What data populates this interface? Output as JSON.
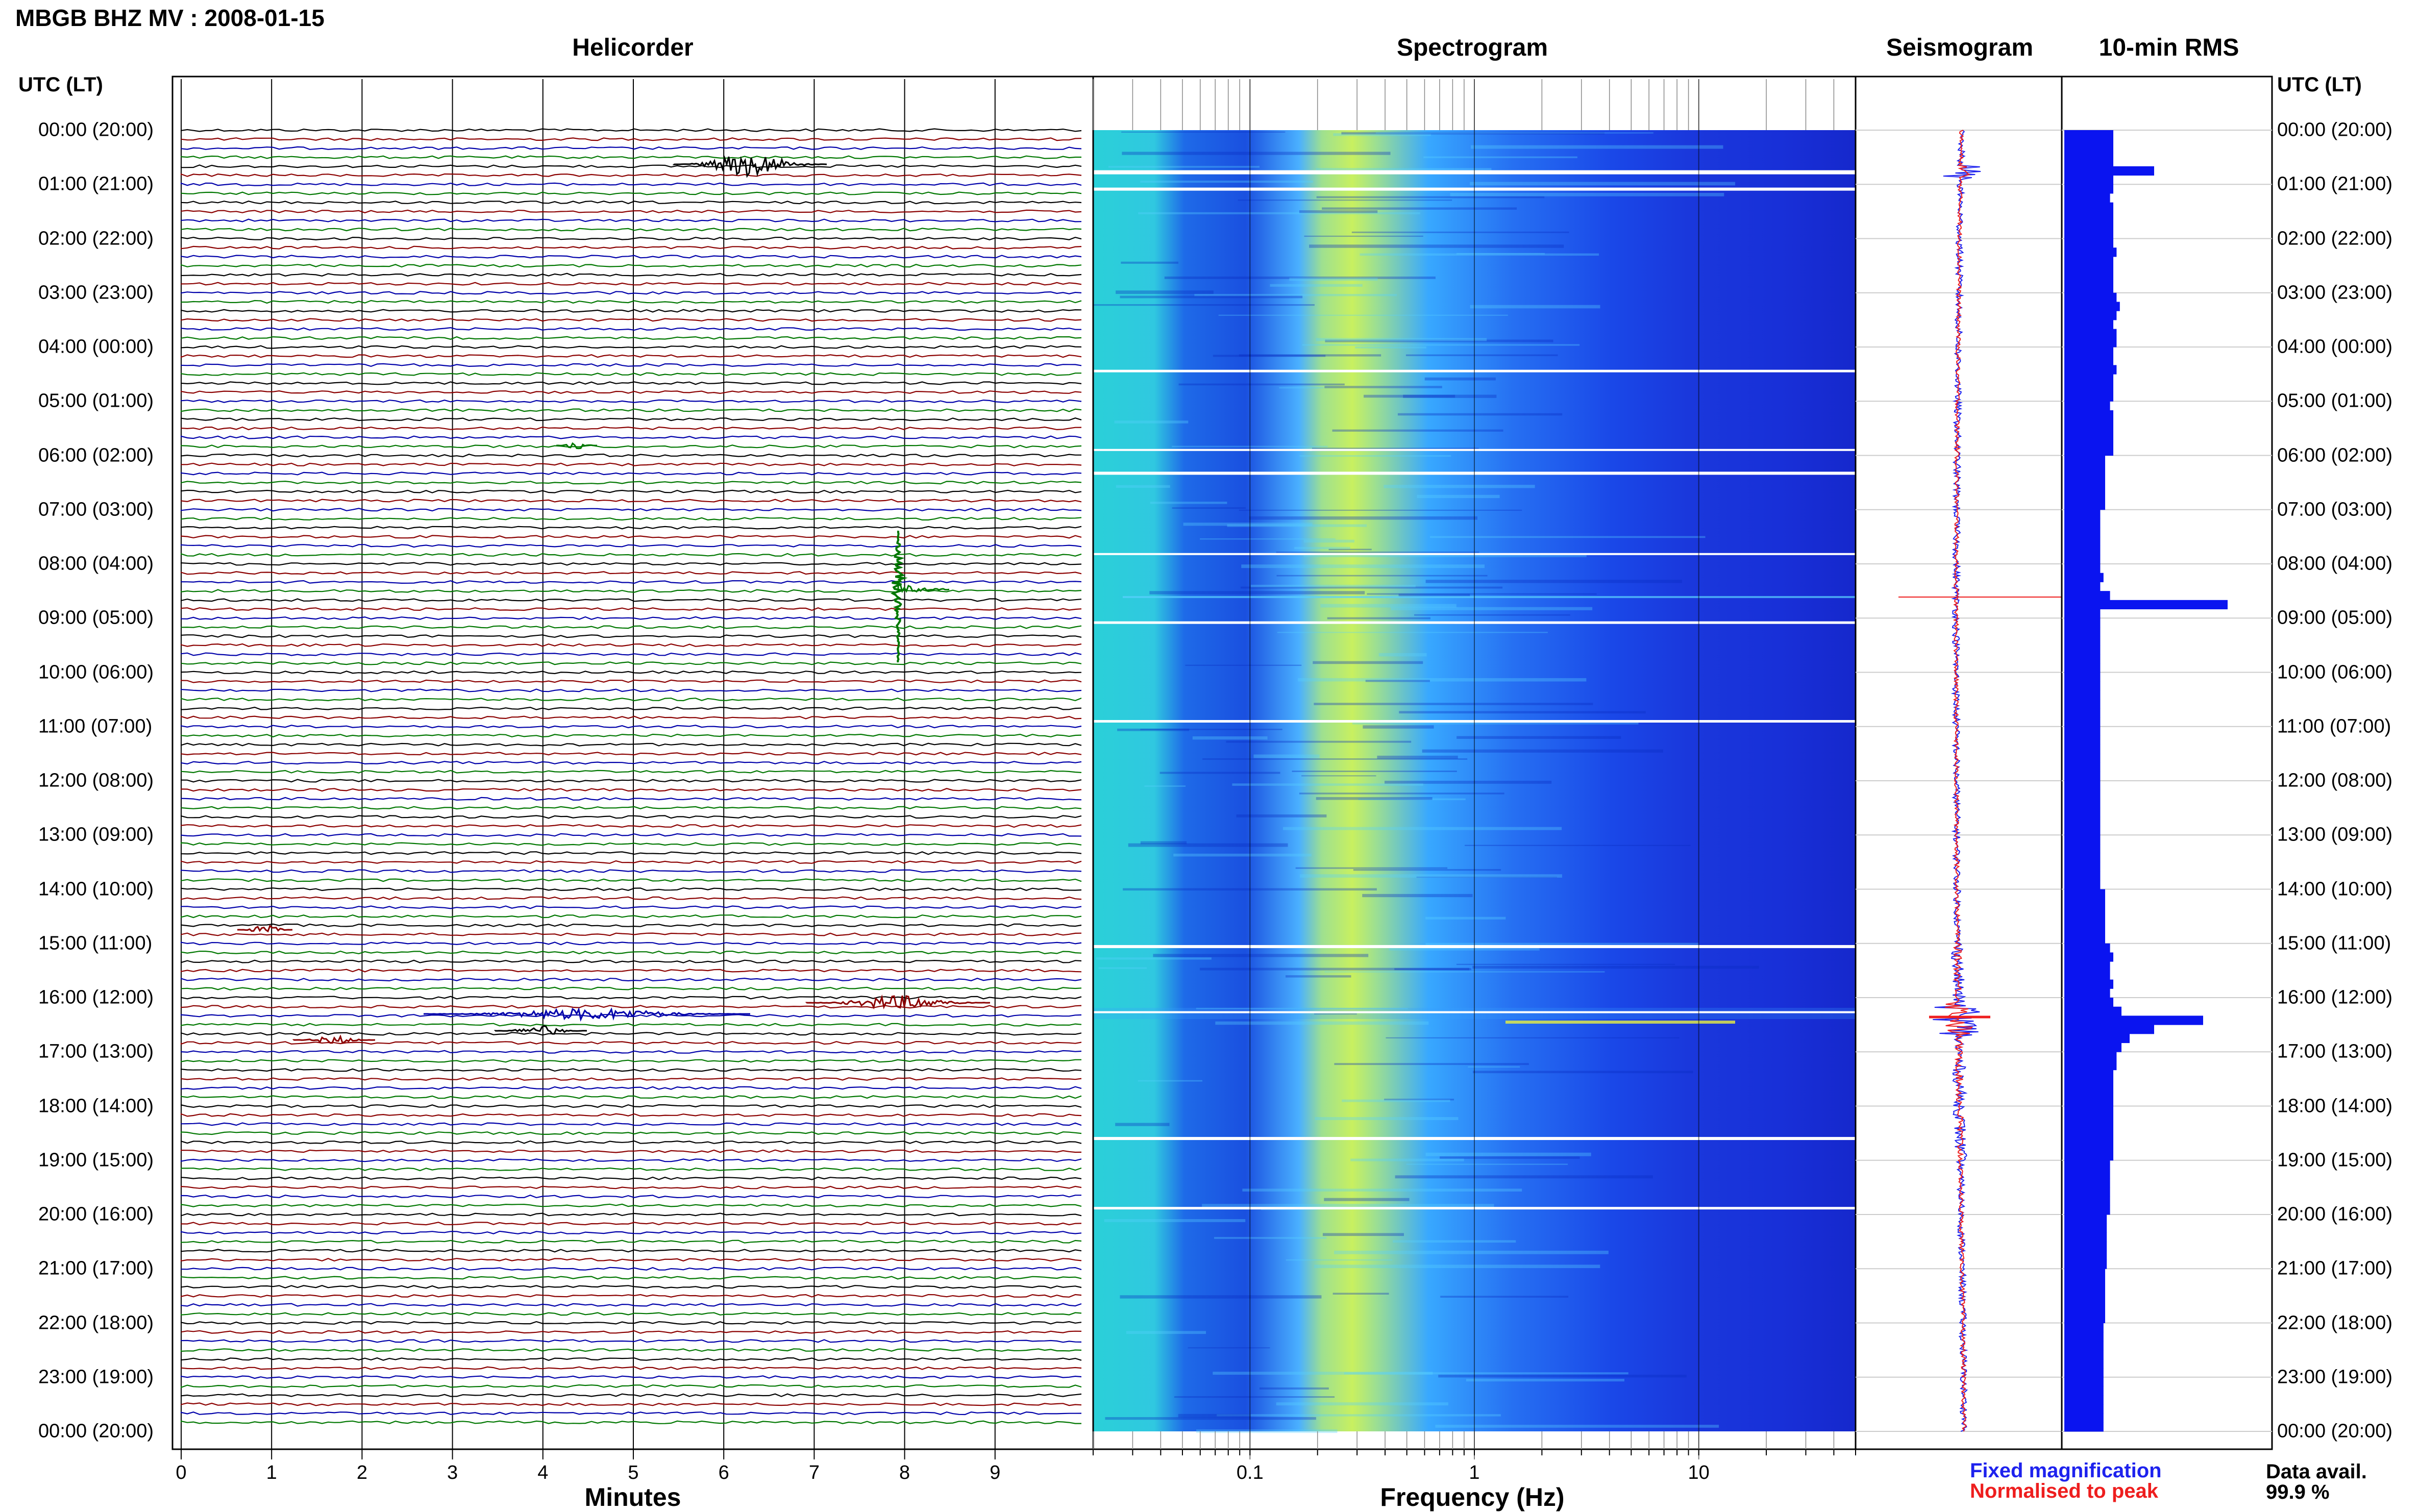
{
  "title": "MBGB BHZ MV : 2008-01-15",
  "panels": {
    "helicorder": "Helicorder",
    "spectrogram": "Spectrogram",
    "seismogram": "Seismogram",
    "rms": "10-min RMS"
  },
  "time_axis_label": "UTC (LT)",
  "time_labels": [
    "00:00 (20:00)",
    "01:00 (21:00)",
    "02:00 (22:00)",
    "03:00 (23:00)",
    "04:00 (00:00)",
    "05:00 (01:00)",
    "06:00 (02:00)",
    "07:00 (03:00)",
    "08:00 (04:00)",
    "09:00 (05:00)",
    "10:00 (06:00)",
    "11:00 (07:00)",
    "12:00 (08:00)",
    "13:00 (09:00)",
    "14:00 (10:00)",
    "15:00 (11:00)",
    "16:00 (12:00)",
    "17:00 (13:00)",
    "18:00 (14:00)",
    "19:00 (15:00)",
    "20:00 (16:00)",
    "21:00 (17:00)",
    "22:00 (18:00)",
    "23:00 (19:00)",
    "00:00 (20:00)"
  ],
  "helicorder_axis": {
    "xlabel": "Minutes",
    "ticks": [
      "0",
      "1",
      "2",
      "3",
      "4",
      "5",
      "6",
      "7",
      "8",
      "9"
    ],
    "trace_colors": [
      "#000000",
      "#8b0000",
      "#0000aa",
      "#007700"
    ]
  },
  "spectrogram_axis": {
    "xlabel": "Frequency (Hz)",
    "ticks": [
      "0.1",
      "1",
      "10"
    ],
    "tick_values": [
      0.1,
      1,
      10
    ],
    "xlim": [
      0.02,
      50
    ],
    "scale": "log"
  },
  "legend": {
    "fixed": "Fixed magnification",
    "normalised": "Normalised to peak",
    "fixed_color": "#1e22ee",
    "normalised_color": "#ee1e1e"
  },
  "data_availability": {
    "label": "Data avail.",
    "value": "99.9 %"
  },
  "chart_data": {
    "type": "bar",
    "title": "10-min RMS",
    "orientation": "horizontal",
    "y_axis": "UTC hour",
    "ylim": [
      0,
      24
    ],
    "events_utc_hours": [
      0.6,
      8.6,
      16.3
    ],
    "values_relative": [
      0.3,
      0.3,
      0.3,
      0.3,
      0.55,
      0.3,
      0.3,
      0.28,
      0.3,
      0.3,
      0.3,
      0.3,
      0.3,
      0.32,
      0.3,
      0.3,
      0.3,
      0.3,
      0.32,
      0.34,
      0.32,
      0.3,
      0.32,
      0.32,
      0.3,
      0.3,
      0.32,
      0.3,
      0.3,
      0.3,
      0.28,
      0.3,
      0.3,
      0.3,
      0.3,
      0.3,
      0.25,
      0.25,
      0.25,
      0.25,
      0.25,
      0.25,
      0.22,
      0.22,
      0.22,
      0.22,
      0.22,
      0.22,
      0.22,
      0.24,
      0.22,
      0.28,
      1.0,
      0.22,
      0.22,
      0.22,
      0.22,
      0.22,
      0.22,
      0.22,
      0.22,
      0.22,
      0.22,
      0.22,
      0.22,
      0.22,
      0.22,
      0.22,
      0.22,
      0.22,
      0.22,
      0.22,
      0.22,
      0.22,
      0.22,
      0.22,
      0.22,
      0.22,
      0.22,
      0.22,
      0.22,
      0.22,
      0.22,
      0.22,
      0.25,
      0.25,
      0.25,
      0.25,
      0.25,
      0.25,
      0.28,
      0.3,
      0.28,
      0.28,
      0.3,
      0.28,
      0.3,
      0.35,
      0.85,
      0.55,
      0.4,
      0.35,
      0.32,
      0.32,
      0.3,
      0.3,
      0.3,
      0.3,
      0.3,
      0.3,
      0.3,
      0.3,
      0.3,
      0.3,
      0.28,
      0.28,
      0.28,
      0.28,
      0.28,
      0.28,
      0.26,
      0.26,
      0.26,
      0.26,
      0.26,
      0.26,
      0.25,
      0.25,
      0.25,
      0.25,
      0.25,
      0.25,
      0.24,
      0.24,
      0.24,
      0.24,
      0.24,
      0.24,
      0.24,
      0.24,
      0.24,
      0.24,
      0.24,
      0.24
    ],
    "bar_color": "#0a14f0"
  }
}
